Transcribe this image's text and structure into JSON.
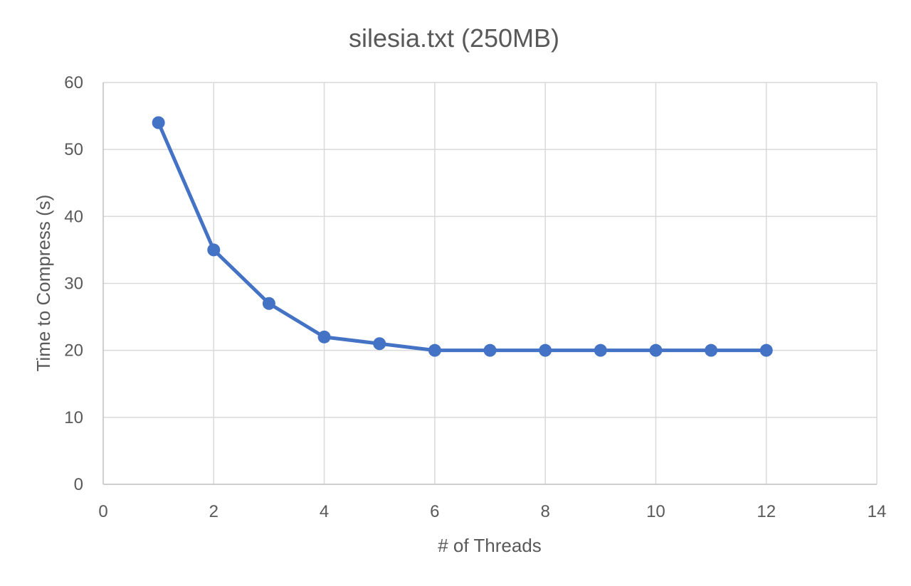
{
  "chart_data": {
    "type": "line",
    "title": "silesia.txt (250MB)",
    "xlabel": "# of Threads",
    "ylabel": "Time to Compress (s)",
    "xlim": [
      0,
      14
    ],
    "ylim": [
      0,
      60
    ],
    "xticks": [
      0,
      2,
      4,
      6,
      8,
      10,
      12,
      14
    ],
    "yticks": [
      0,
      10,
      20,
      30,
      40,
      50,
      60
    ],
    "grid": true,
    "legend": "none",
    "series": [
      {
        "color": "#4472c4",
        "x": [
          1,
          2,
          3,
          4,
          5,
          6,
          7,
          8,
          9,
          10,
          11,
          12
        ],
        "values": [
          54,
          35,
          27,
          22,
          21,
          20,
          20,
          20,
          20,
          20,
          20,
          20
        ]
      }
    ]
  }
}
